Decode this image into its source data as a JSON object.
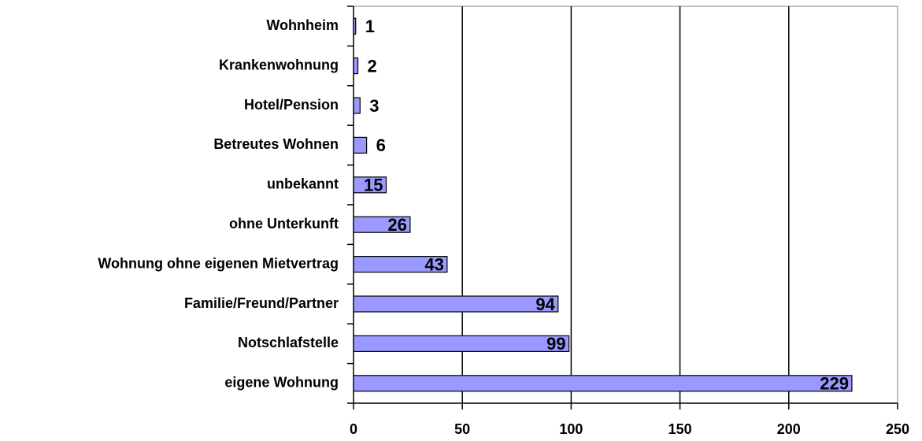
{
  "chart_data": {
    "type": "bar",
    "orientation": "horizontal",
    "categories": [
      "Wohnheim",
      "Krankenwohnung",
      "Hotel/Pension",
      "Betreutes Wohnen",
      "unbekannt",
      "ohne Unterkunft",
      "Wohnung ohne eigenen Mietvertrag",
      "Familie/Freund/Partner",
      "Notschlafstelle",
      "eigene Wohnung"
    ],
    "values": [
      1,
      2,
      3,
      6,
      15,
      26,
      43,
      94,
      99,
      229
    ],
    "color": "#9999ff",
    "xlim": [
      0,
      250
    ],
    "xticks": [
      0,
      50,
      100,
      150,
      200,
      250
    ],
    "grid": true
  }
}
